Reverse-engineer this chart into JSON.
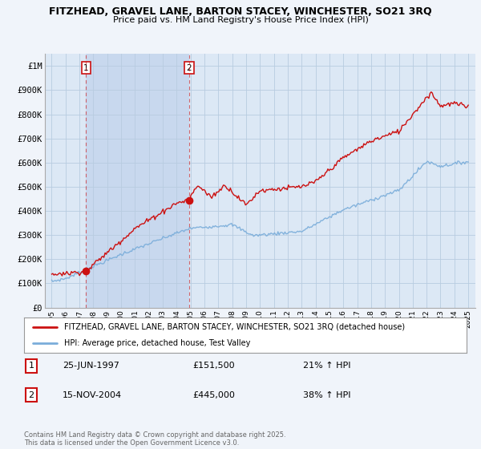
{
  "title": "FITZHEAD, GRAVEL LANE, BARTON STACEY, WINCHESTER, SO21 3RQ",
  "subtitle": "Price paid vs. HM Land Registry's House Price Index (HPI)",
  "legend_label_red": "FITZHEAD, GRAVEL LANE, BARTON STACEY, WINCHESTER, SO21 3RQ (detached house)",
  "legend_label_blue": "HPI: Average price, detached house, Test Valley",
  "footnote": "Contains HM Land Registry data © Crown copyright and database right 2025.\nThis data is licensed under the Open Government Licence v3.0.",
  "sale1_label": "1",
  "sale1_date": "25-JUN-1997",
  "sale1_price": "£151,500",
  "sale1_hpi": "21% ↑ HPI",
  "sale2_label": "2",
  "sale2_date": "15-NOV-2004",
  "sale2_price": "£445,000",
  "sale2_hpi": "38% ↑ HPI",
  "sale1_x": 1997.48,
  "sale1_y": 151500,
  "sale2_x": 2004.88,
  "sale2_y": 445000,
  "ylim": [
    0,
    1050000
  ],
  "xlim": [
    1994.5,
    2025.5
  ],
  "background_color": "#f0f4fa",
  "plot_bg_color": "#dce8f5",
  "highlight_bg": "#c8d8ee",
  "red_color": "#cc1111",
  "blue_color": "#7aadda",
  "grid_color": "#b8cce0",
  "yticks": [
    0,
    100000,
    200000,
    300000,
    400000,
    500000,
    600000,
    700000,
    800000,
    900000,
    1000000
  ],
  "ytick_labels": [
    "£0",
    "£100K",
    "£200K",
    "£300K",
    "£400K",
    "£500K",
    "£600K",
    "£700K",
    "£800K",
    "£900K",
    "£1M"
  ],
  "xticks": [
    1995,
    1996,
    1997,
    1998,
    1999,
    2000,
    2001,
    2002,
    2003,
    2004,
    2005,
    2006,
    2007,
    2008,
    2009,
    2010,
    2011,
    2012,
    2013,
    2014,
    2015,
    2016,
    2017,
    2018,
    2019,
    2020,
    2021,
    2022,
    2023,
    2024,
    2025
  ]
}
